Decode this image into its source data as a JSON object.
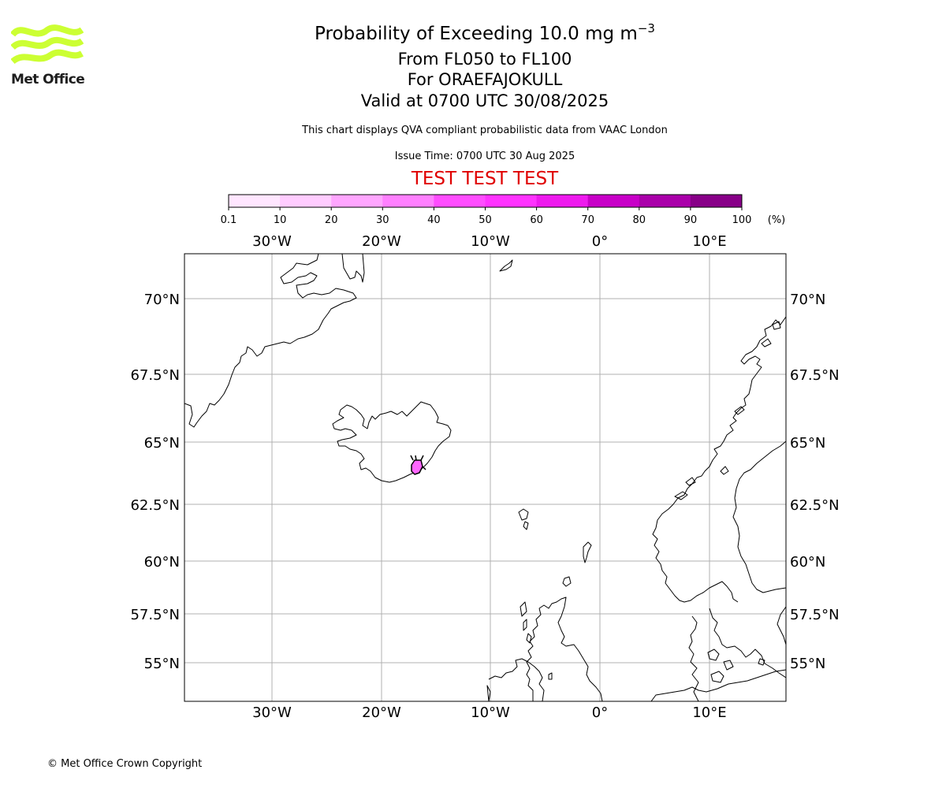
{
  "header": {
    "title_main": "Probability of Exceeding 10.0 mg m",
    "title_exp": "−3",
    "title_line2": "From FL050 to FL100",
    "title_line3": "For ORAEFAJOKULL",
    "title_line4": "Valid at 0700 UTC 30/08/2025",
    "description": "This chart displays QVA compliant probabilistic data from VAAC London",
    "issue_time": "Issue Time: 0700 UTC 30 Aug 2025",
    "test_banner": "TEST TEST TEST",
    "test_color": "#e00000"
  },
  "logo": {
    "text": "Met Office",
    "icon": "met-office-wave-logo",
    "color": "#ccff33"
  },
  "colorbar": {
    "unit": "(%)",
    "tick_labels": [
      "0.1",
      "10",
      "20",
      "30",
      "40",
      "50",
      "60",
      "70",
      "80",
      "90",
      "100"
    ],
    "colors": [
      "#ffe6ff",
      "#ffccff",
      "#ffa6ff",
      "#ff80ff",
      "#ff4dff",
      "#ff33ff",
      "#ee1aee",
      "#c800c8",
      "#aa00aa",
      "#880088",
      "#660066"
    ]
  },
  "map": {
    "lon_range": [
      -38,
      17
    ],
    "lat_range": [
      53.3,
      72
    ],
    "top_lon_labels": [
      "30°W",
      "20°W",
      "10°W",
      "0°",
      "10°E"
    ],
    "bottom_lon_labels": [
      "30°W",
      "20°W",
      "10°W",
      "0°",
      "10°E"
    ],
    "left_lat_labels": [
      "70°N",
      "67.5°N",
      "65°N",
      "62.5°N",
      "60°N",
      "57.5°N",
      "55°N"
    ],
    "right_lat_labels": [
      "70°N",
      "67.5°N",
      "65°N",
      "62.5°N",
      "60°N",
      "57.5°N",
      "55°N"
    ],
    "volcano": "ORAEFAJOKULL",
    "ash_fill_color": "#ff66ff",
    "gridline_color": "#b0b0b0"
  },
  "footer": {
    "copyright": "© Met Office Crown Copyright"
  }
}
